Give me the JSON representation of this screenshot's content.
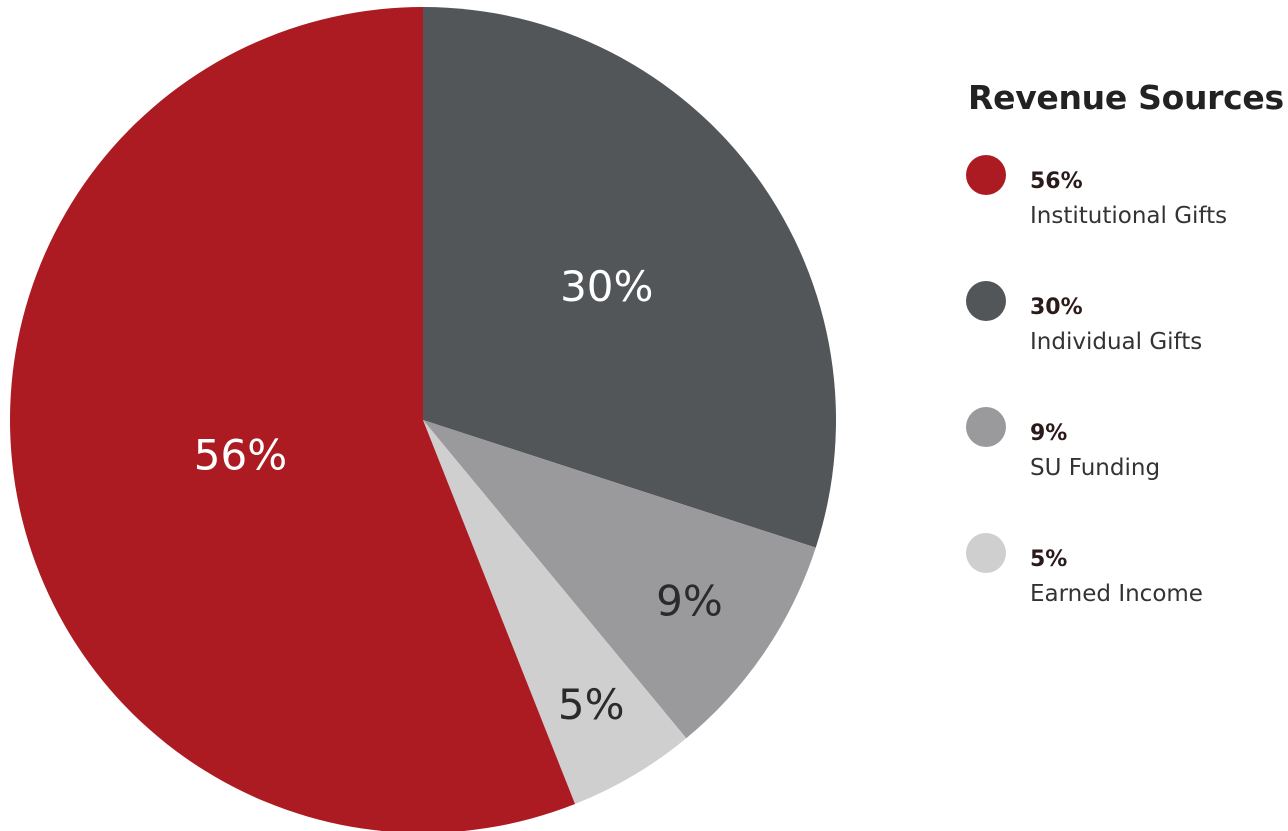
{
  "chart_data": {
    "type": "pie",
    "title": "Revenue Sources",
    "slices": [
      {
        "label": "Institutional Gifts",
        "value": 56,
        "display": "56%",
        "color": "#ad1b22"
      },
      {
        "label": "Individual Gifts",
        "value": 30,
        "display": "30%",
        "color": "#535659"
      },
      {
        "label": "SU Funding",
        "value": 9,
        "display": "9%",
        "color": "#9a9a9c"
      },
      {
        "label": "Earned Income",
        "value": 5,
        "display": "5%",
        "color": "#cfcfd0"
      }
    ],
    "legend_position": "right"
  }
}
